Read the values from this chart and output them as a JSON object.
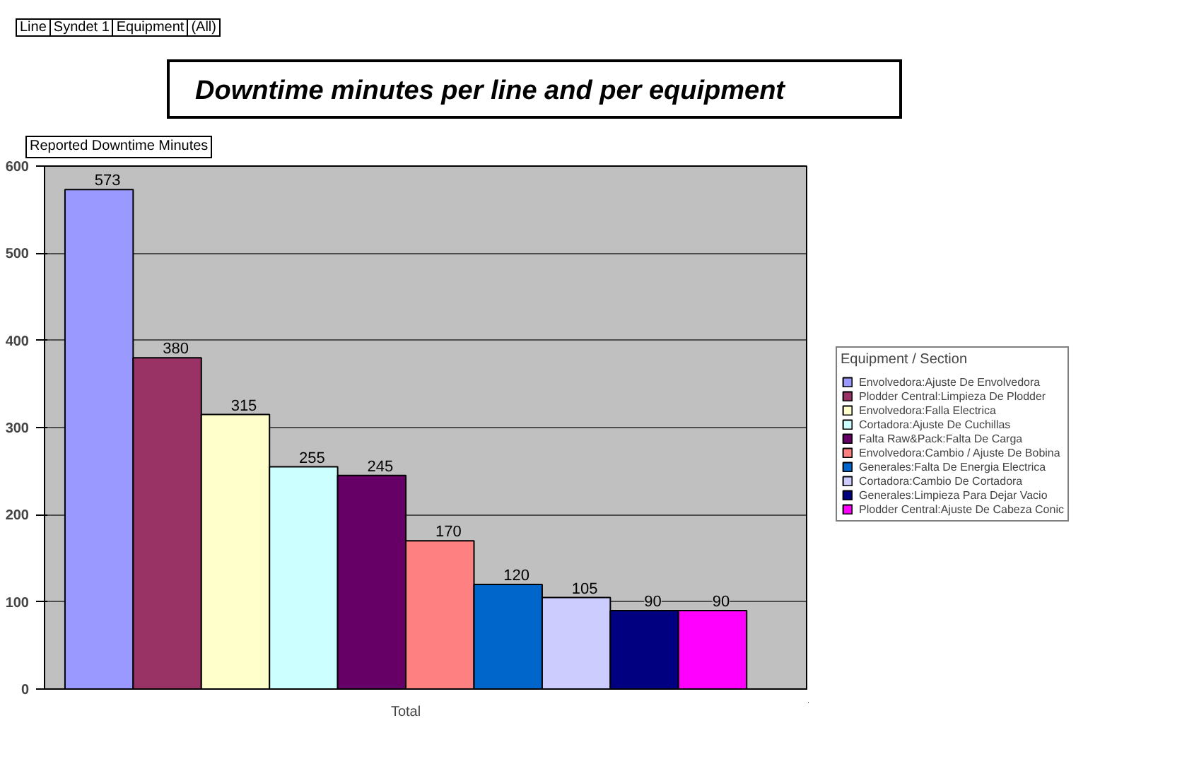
{
  "chart_data": {
    "type": "bar",
    "title": "Downtime minutes per line and per equipment",
    "ylabel": "Reported Downtime Minutes",
    "legend_title": "Equipment / Section",
    "annotations": [
      "Line",
      "Syndet 1",
      "Equipment",
      "(All)"
    ],
    "categories": [
      "Total"
    ],
    "series": [
      {
        "name": "Envolvedora:Ajuste De Envolvedora",
        "color": "#9999ff",
        "values": [
          573
        ]
      },
      {
        "name": "Plodder Central:Limpieza De Plodder",
        "color": "#993366",
        "values": [
          380
        ]
      },
      {
        "name": "Envolvedora:Falla Electrica",
        "color": "#ffffcc",
        "values": [
          315
        ]
      },
      {
        "name": "Cortadora:Ajuste De Cuchillas",
        "color": "#ccffff",
        "values": [
          255
        ]
      },
      {
        "name": "Falta Raw&Pack:Falta De Carga",
        "color": "#660066",
        "values": [
          245
        ]
      },
      {
        "name": "Envolvedora:Cambio / Ajuste De Bobina",
        "color": "#ff8080",
        "values": [
          170
        ]
      },
      {
        "name": "Generales:Falta De Energia Electrica",
        "color": "#0066cc",
        "values": [
          120
        ]
      },
      {
        "name": "Cortadora:Cambio De Cortadora",
        "color": "#ccccff",
        "values": [
          105
        ]
      },
      {
        "name": "Generales:Limpieza Para Dejar Vacio",
        "color": "#000080",
        "values": [
          90
        ]
      },
      {
        "name": "Plodder Central:Ajuste De Cabeza Conic",
        "color": "#ff00ff",
        "values": [
          90
        ]
      }
    ],
    "ylim": [
      0,
      600
    ],
    "yticks": [
      0,
      100,
      200,
      300,
      400,
      500,
      600
    ],
    "grid": "y",
    "legend": "right",
    "data_labels": true
  }
}
